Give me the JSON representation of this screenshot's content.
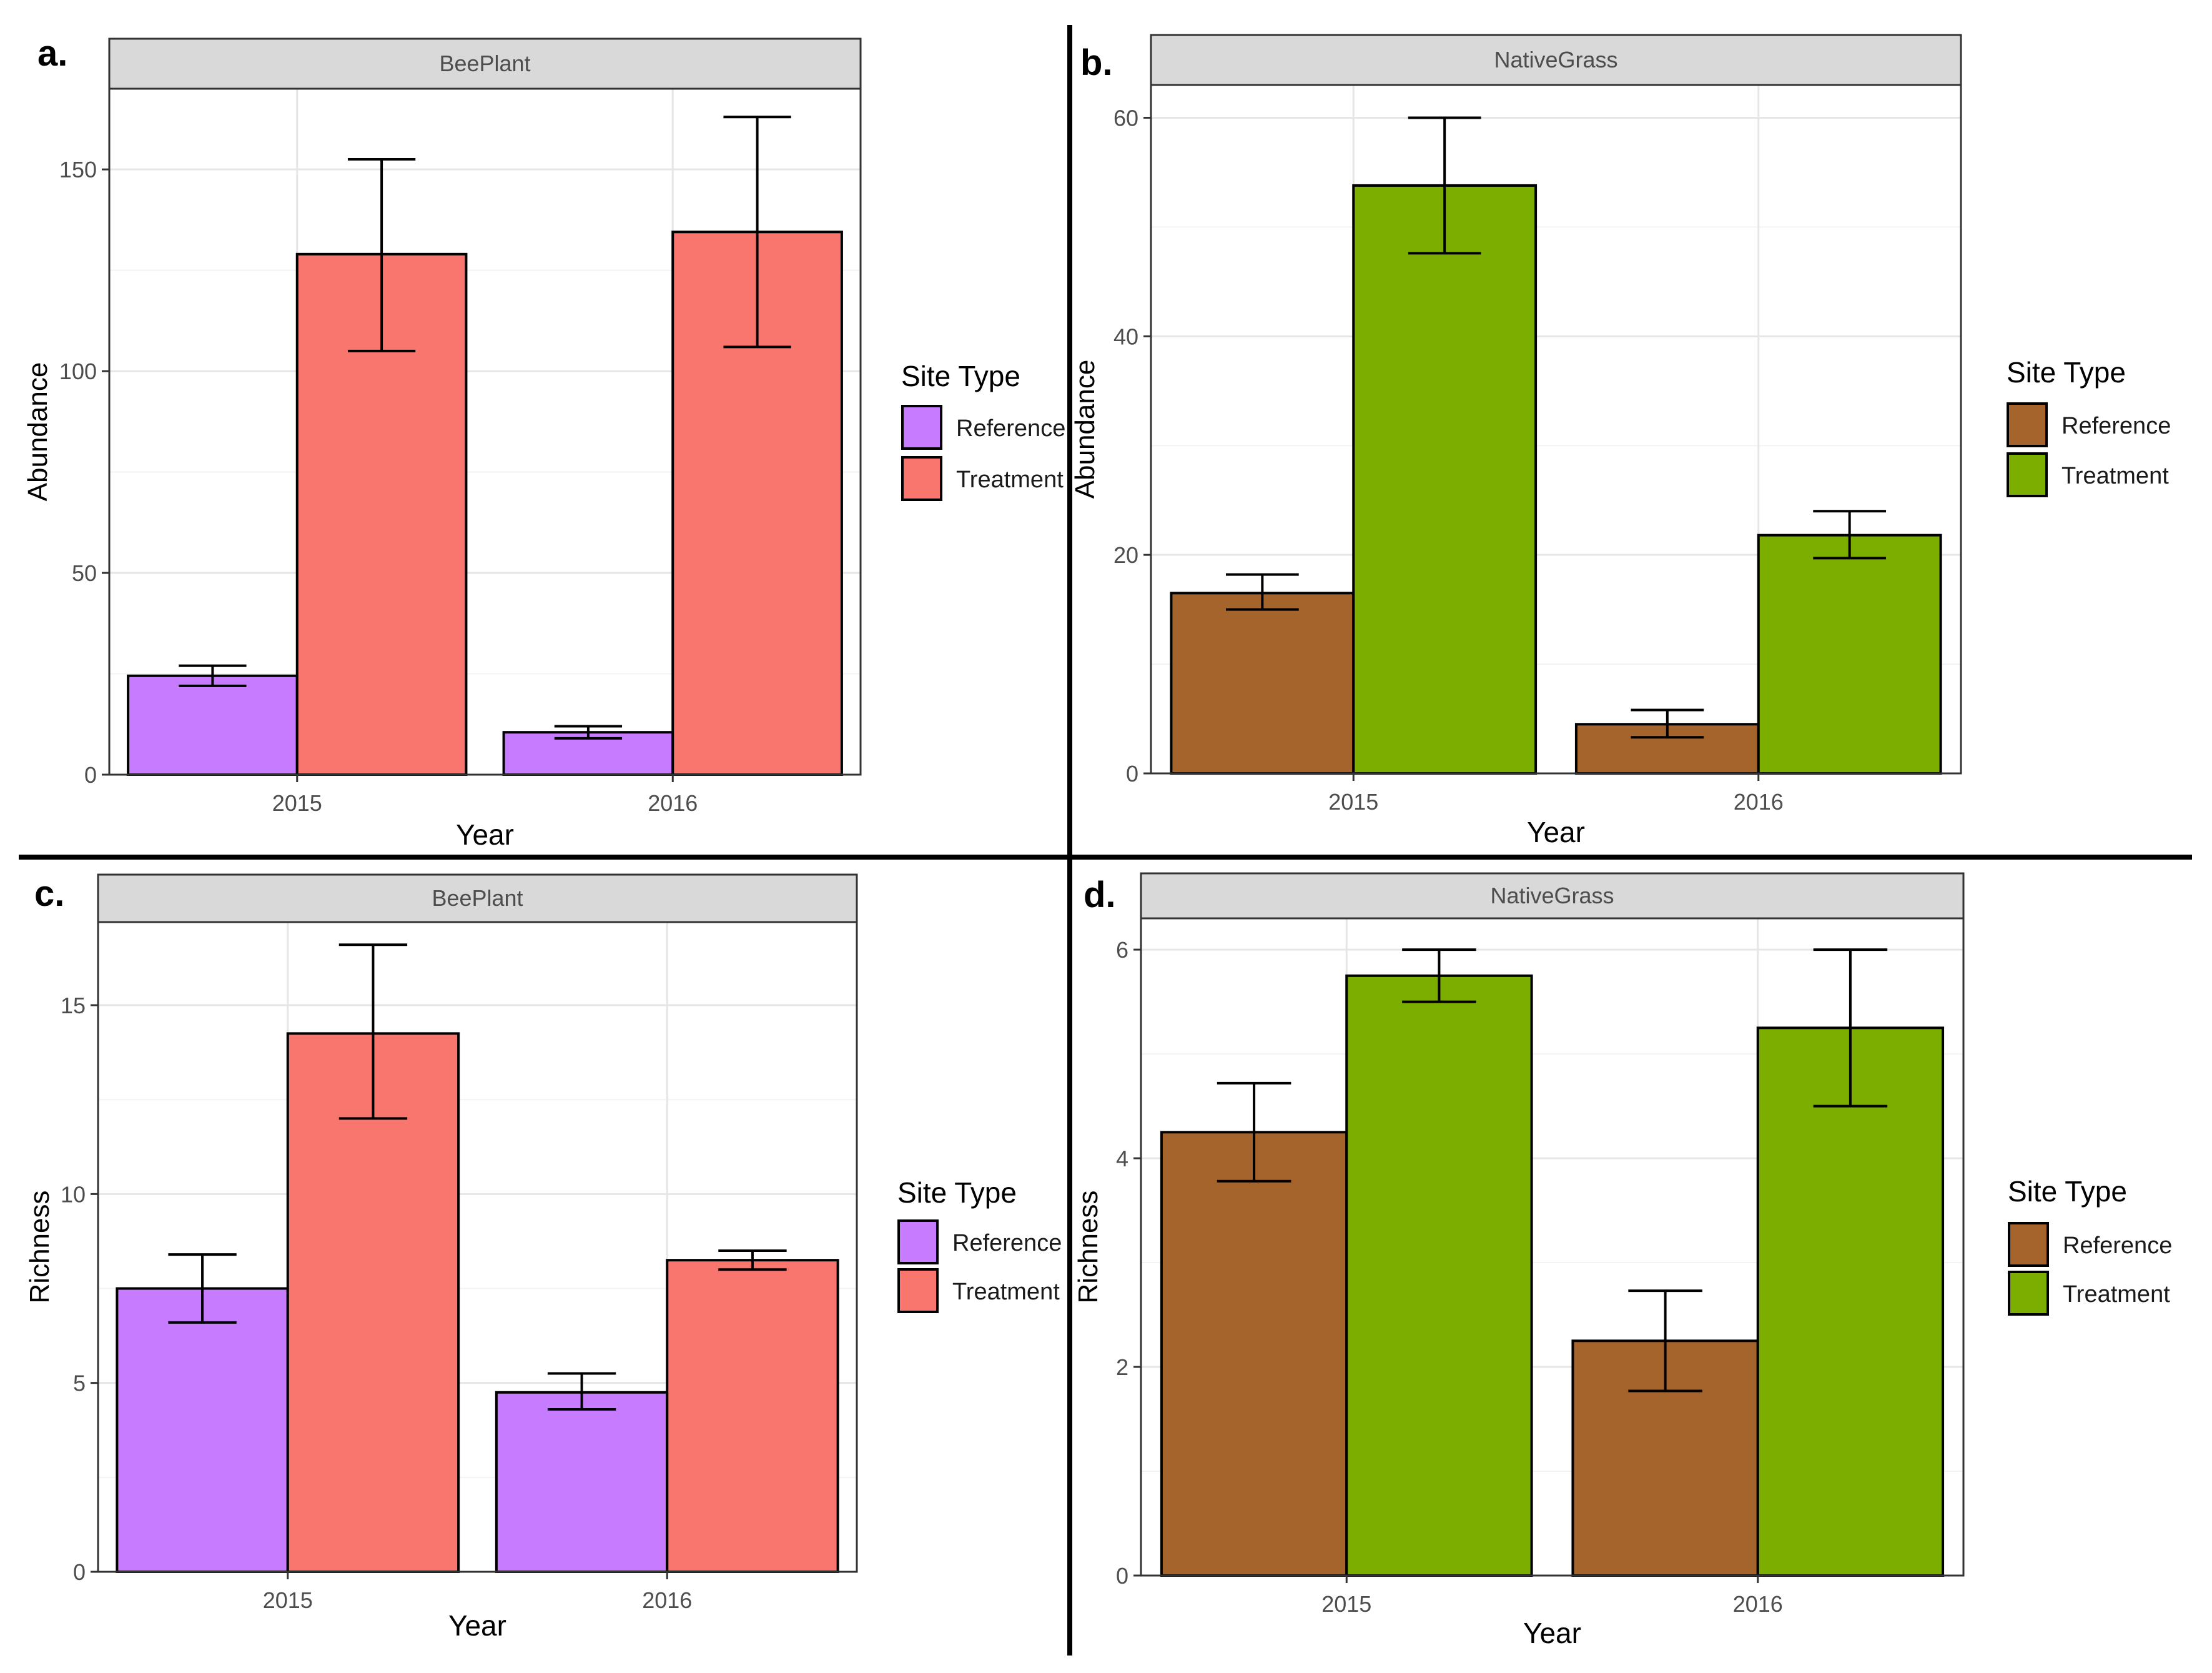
{
  "chart_data": [
    {
      "panel_label": "a.",
      "type": "bar",
      "facet": "BeePlant",
      "categories": [
        "2015",
        "2016"
      ],
      "xlabel": "Year",
      "ylabel": "Abundance",
      "ylim": [
        0,
        170
      ],
      "yticks": [
        0,
        50,
        100,
        150
      ],
      "grid": true,
      "legend": {
        "title": "Site  Type",
        "position": "right"
      },
      "series": [
        {
          "name": "Reference",
          "color": "#c77cff",
          "values": [
            24.5,
            10.5
          ],
          "err_low": [
            22,
            9
          ],
          "err_high": [
            27,
            12
          ]
        },
        {
          "name": "Treatment",
          "color": "#f8766d",
          "values": [
            129,
            134.5
          ],
          "err_low": [
            105,
            106
          ],
          "err_high": [
            152.5,
            163
          ]
        }
      ]
    },
    {
      "panel_label": "b.",
      "type": "bar",
      "facet": "NativeGrass",
      "categories": [
        "2015",
        "2016"
      ],
      "xlabel": "Year",
      "ylabel": "Abundance",
      "ylim": [
        0,
        63
      ],
      "yticks": [
        0,
        20,
        40,
        60
      ],
      "grid": true,
      "legend": {
        "title": "Site  Type",
        "position": "right"
      },
      "series": [
        {
          "name": "Reference",
          "color": "#a5642b",
          "values": [
            16.5,
            4.5
          ],
          "err_low": [
            15,
            3.3
          ],
          "err_high": [
            18.2,
            5.8
          ]
        },
        {
          "name": "Treatment",
          "color": "#7cae00",
          "values": [
            53.8,
            21.8
          ],
          "err_low": [
            47.6,
            19.7
          ],
          "err_high": [
            60,
            24
          ]
        }
      ]
    },
    {
      "panel_label": "c.",
      "type": "bar",
      "facet": "BeePlant",
      "categories": [
        "2015",
        "2016"
      ],
      "xlabel": "Year",
      "ylabel": "Richness",
      "ylim": [
        0,
        17.2
      ],
      "yticks": [
        0,
        5,
        10,
        15
      ],
      "grid": true,
      "legend": {
        "title": "Site  Type",
        "position": "right"
      },
      "series": [
        {
          "name": "Reference",
          "color": "#c77cff",
          "values": [
            7.5,
            4.75
          ],
          "err_low": [
            6.6,
            4.3
          ],
          "err_high": [
            8.4,
            5.25
          ]
        },
        {
          "name": "Treatment",
          "color": "#f8766d",
          "values": [
            14.25,
            8.25
          ],
          "err_low": [
            12,
            8
          ],
          "err_high": [
            16.6,
            8.5
          ]
        }
      ]
    },
    {
      "panel_label": "d.",
      "type": "bar",
      "facet": "NativeGrass",
      "categories": [
        "2015",
        "2016"
      ],
      "xlabel": "Year",
      "ylabel": "Richness",
      "ylim": [
        0,
        6.3
      ],
      "yticks": [
        0,
        2,
        4,
        6
      ],
      "grid": true,
      "legend": {
        "title": "Site  Type",
        "position": "right"
      },
      "series": [
        {
          "name": "Reference",
          "color": "#a5642b",
          "values": [
            4.25,
            2.25
          ],
          "err_low": [
            3.78,
            1.77
          ],
          "err_high": [
            4.72,
            2.73
          ]
        },
        {
          "name": "Treatment",
          "color": "#7cae00",
          "values": [
            5.75,
            5.25
          ],
          "err_low": [
            5.5,
            4.5
          ],
          "err_high": [
            6,
            6
          ]
        }
      ]
    }
  ]
}
